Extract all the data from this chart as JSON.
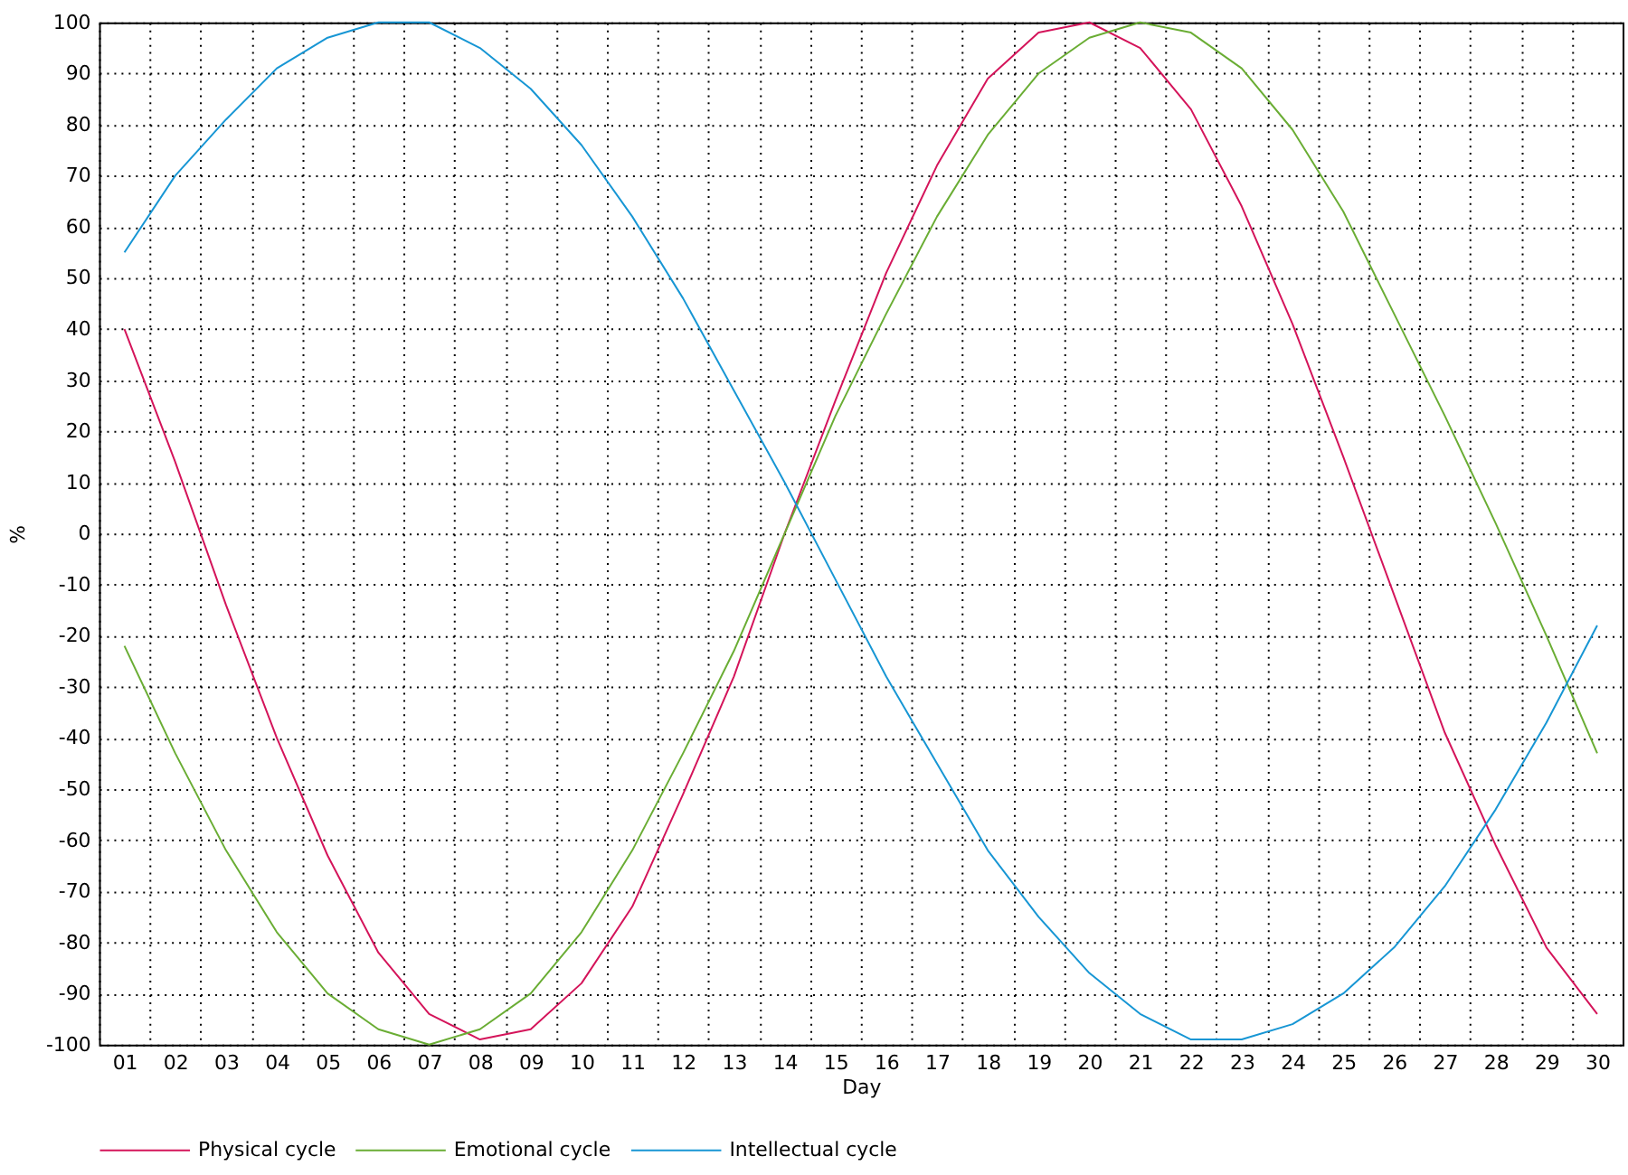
{
  "chart_data": {
    "type": "line",
    "xlabel": "Day",
    "ylabel": "%",
    "categories": [
      "01",
      "02",
      "03",
      "04",
      "05",
      "06",
      "07",
      "08",
      "09",
      "10",
      "11",
      "12",
      "13",
      "14",
      "15",
      "16",
      "17",
      "18",
      "19",
      "20",
      "21",
      "22",
      "23",
      "24",
      "25",
      "26",
      "27",
      "28",
      "29",
      "30"
    ],
    "series": [
      {
        "name": "Physical cycle",
        "color": "#d4145a",
        "values": [
          40,
          14,
          -14,
          -40,
          -63,
          -82,
          -94,
          -99,
          -97,
          -88,
          -73,
          -51,
          -28,
          0,
          26,
          51,
          72,
          89,
          98,
          100,
          95,
          83,
          64,
          41,
          15,
          -12,
          -39,
          -61,
          -81,
          -94
        ]
      },
      {
        "name": "Emotional cycle",
        "color": "#6aad34",
        "values": [
          -22,
          -43,
          -62,
          -78,
          -90,
          -97,
          -100,
          -97,
          -90,
          -78,
          -62,
          -43,
          -23,
          0,
          23,
          43,
          62,
          78,
          90,
          97,
          100,
          98,
          91,
          79,
          63,
          43,
          23,
          2,
          -20,
          -43
        ]
      },
      {
        "name": "Intellectual cycle",
        "color": "#1796d4",
        "values": [
          55,
          70,
          81,
          91,
          97,
          100,
          100,
          95,
          87,
          76,
          62,
          46,
          28,
          10,
          -9,
          -28,
          -45,
          -62,
          -75,
          -86,
          -94,
          -99,
          -99,
          -96,
          -90,
          -81,
          -69,
          -54,
          -37,
          -18
        ]
      }
    ],
    "ylim": [
      -100,
      100
    ],
    "yticks": [
      -100,
      -90,
      -80,
      -70,
      -60,
      -50,
      -40,
      -30,
      -20,
      -10,
      0,
      10,
      20,
      30,
      40,
      50,
      60,
      70,
      80,
      90,
      100
    ],
    "grid": true,
    "legend": "bottom"
  }
}
